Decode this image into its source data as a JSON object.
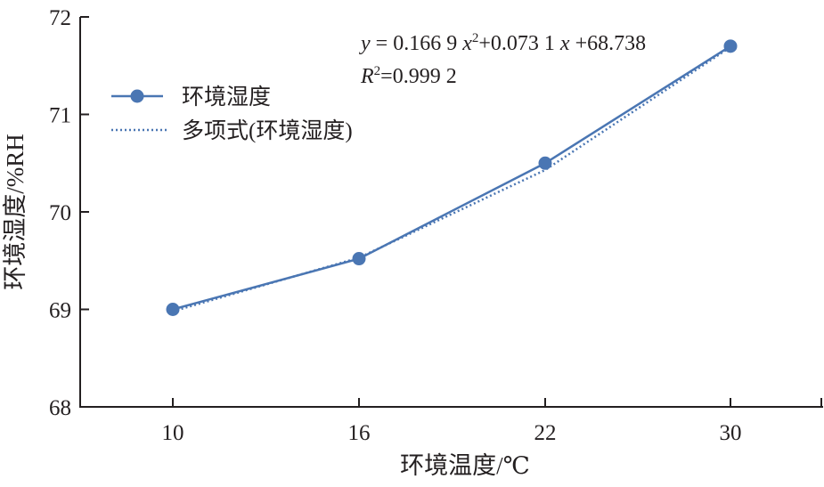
{
  "chart_data": {
    "type": "line",
    "x_axis": {
      "label": "环境温度/℃",
      "categories": [
        "10",
        "16",
        "22",
        "30"
      ]
    },
    "y_axis": {
      "label": "环境湿度/%RH",
      "ylim": [
        68,
        72
      ],
      "ticks": [
        "68",
        "69",
        "70",
        "71",
        "72"
      ]
    },
    "series": [
      {
        "name": "环境湿度",
        "style": "solid-with-markers",
        "color": "#4a76b3",
        "values": [
          69.0,
          69.52,
          70.5,
          71.7
        ]
      },
      {
        "name": "多项式(环境湿度)",
        "style": "dotted",
        "color": "#4a76b3",
        "values": [
          68.98,
          69.53,
          70.43,
          71.69
        ]
      }
    ],
    "legend": {
      "position": "top-left",
      "entries": [
        "环境湿度",
        "多项式(环境湿度)"
      ]
    },
    "annotation": {
      "equation_parts": [
        "y",
        " = 0.166 9 ",
        "x",
        "2",
        "+0.073 1 ",
        "x",
        " +68.738"
      ],
      "r2_parts": [
        "R",
        "2",
        "=0.999 2"
      ]
    },
    "grid": false
  }
}
